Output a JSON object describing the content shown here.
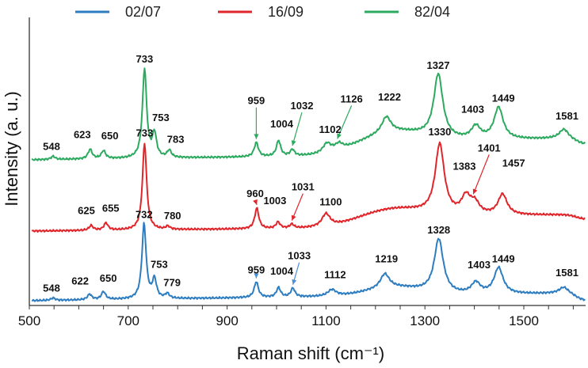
{
  "chart_data": {
    "type": "line",
    "xlabel": "Raman shift (cm⁻¹)",
    "ylabel": "Intensity (a. u.)",
    "xlim": [
      500,
      1625
    ],
    "xticks": [
      "500",
      "700",
      "900",
      "1100",
      "1300",
      "1500"
    ],
    "yticks": [],
    "grid": false,
    "legend_position": "top",
    "series": [
      {
        "name": "02/07",
        "color": "#2E7DC0",
        "peaks": [
          {
            "x": 548,
            "label": "548"
          },
          {
            "x": 622,
            "label": "622"
          },
          {
            "x": 650,
            "label": "650"
          },
          {
            "x": 732,
            "label": "732"
          },
          {
            "x": 753,
            "label": "753"
          },
          {
            "x": 779,
            "label": "779"
          },
          {
            "x": 959,
            "label": "959"
          },
          {
            "x": 1004,
            "label": "1004"
          },
          {
            "x": 1033,
            "label": "1033"
          },
          {
            "x": 1112,
            "label": "1112"
          },
          {
            "x": 1219,
            "label": "1219"
          },
          {
            "x": 1328,
            "label": "1328"
          },
          {
            "x": 1403,
            "label": "1403"
          },
          {
            "x": 1449,
            "label": "1449"
          },
          {
            "x": 1581,
            "label": "1581"
          }
        ]
      },
      {
        "name": "16/09",
        "color": "#E0262B",
        "peaks": [
          {
            "x": 625,
            "label": "625"
          },
          {
            "x": 655,
            "label": "655"
          },
          {
            "x": 733,
            "label": "733"
          },
          {
            "x": 780,
            "label": "780"
          },
          {
            "x": 960,
            "label": "960"
          },
          {
            "x": 1003,
            "label": "1003"
          },
          {
            "x": 1031,
            "label": "1031"
          },
          {
            "x": 1100,
            "label": "1100"
          },
          {
            "x": 1330,
            "label": "1330"
          },
          {
            "x": 1383,
            "label": "1383"
          },
          {
            "x": 1401,
            "label": "1401"
          },
          {
            "x": 1457,
            "label": "1457"
          }
        ]
      },
      {
        "name": "82/04",
        "color": "#2DAA5F",
        "peaks": [
          {
            "x": 548,
            "label": "548"
          },
          {
            "x": 623,
            "label": "623"
          },
          {
            "x": 650,
            "label": "650"
          },
          {
            "x": 733,
            "label": "733"
          },
          {
            "x": 753,
            "label": "753"
          },
          {
            "x": 783,
            "label": "783"
          },
          {
            "x": 959,
            "label": "959"
          },
          {
            "x": 1004,
            "label": "1004"
          },
          {
            "x": 1032,
            "label": "1032"
          },
          {
            "x": 1102,
            "label": "1102"
          },
          {
            "x": 1126,
            "label": "1126"
          },
          {
            "x": 1222,
            "label": "1222"
          },
          {
            "x": 1327,
            "label": "1327"
          },
          {
            "x": 1403,
            "label": "1403"
          },
          {
            "x": 1449,
            "label": "1449"
          },
          {
            "x": 1581,
            "label": "1581"
          }
        ]
      }
    ]
  }
}
